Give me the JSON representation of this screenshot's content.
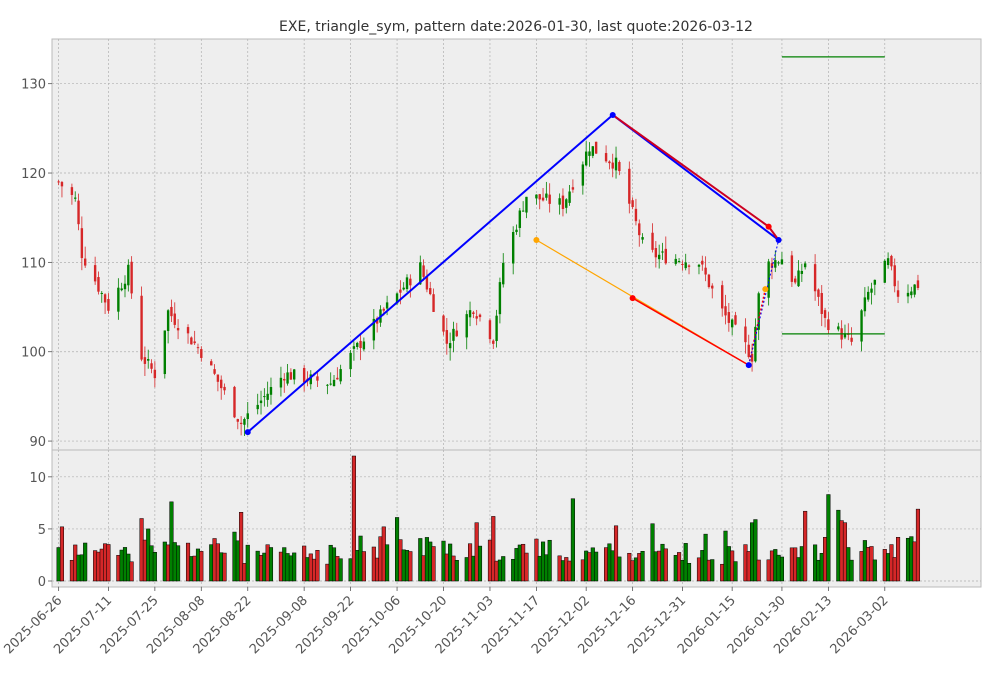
{
  "title": "EXE, triangle_sym, pattern date:2026-01-30, last quote:2026-03-12",
  "colors": {
    "panel_bg": "#eeeeee",
    "grid": "#b0b0b0",
    "axis": "#bbbbbb",
    "up": "#008000",
    "down": "#d62728",
    "volume_edge": "#000000",
    "upper_line": "#0000ff",
    "upper_line2": "#cc0022",
    "lower_line": "#ffa500",
    "lower_line2": "#ff0000",
    "marker_blue": "#0000ff",
    "marker_red": "#ff0000",
    "marker_orange": "#ffa500",
    "target_line": "#008000"
  },
  "chart_data": [
    {
      "type": "candlestick",
      "title": "EXE, triangle_sym, pattern date:2026-01-30, last quote:2026-03-12",
      "xlabel": "",
      "ylabel": "",
      "x_range": [
        "2025-06-24",
        "2026-03-31"
      ],
      "ylim": [
        89,
        135
      ],
      "grid": true,
      "y_ticks": [
        90,
        100,
        110,
        120,
        130
      ],
      "x_ticks": [
        "2025-06-26",
        "2025-07-11",
        "2025-07-25",
        "2025-08-08",
        "2025-08-22",
        "2025-09-08",
        "2025-09-22",
        "2025-10-06",
        "2025-10-20",
        "2025-11-03",
        "2025-11-17",
        "2025-12-02",
        "2025-12-16",
        "2025-12-31",
        "2026-01-15",
        "2026-01-30",
        "2026-02-13",
        "2026-03-02"
      ],
      "ohlc_segments": [
        {
          "from": "2025-06-26",
          "to": "2025-07-01",
          "start": 119.0,
          "end": 117.0
        },
        {
          "from": "2025-07-01",
          "to": "2025-07-03",
          "start": 117.0,
          "end": 111.0
        },
        {
          "from": "2025-07-03",
          "to": "2025-07-11",
          "start": 111.0,
          "end": 105.0
        },
        {
          "from": "2025-07-11",
          "to": "2025-07-17",
          "start": 105.0,
          "end": 109.0
        },
        {
          "from": "2025-07-17",
          "to": "2025-07-21",
          "start": 109.0,
          "end": 99.5
        },
        {
          "from": "2025-07-21",
          "to": "2025-07-25",
          "start": 99.5,
          "end": 97.5
        },
        {
          "from": "2025-07-25",
          "to": "2025-07-29",
          "start": 97.5,
          "end": 104.5
        },
        {
          "from": "2025-07-29",
          "to": "2025-08-08",
          "start": 104.5,
          "end": 100.0
        },
        {
          "from": "2025-08-08",
          "to": "2025-08-20",
          "start": 100.0,
          "end": 92.0
        },
        {
          "from": "2025-08-20",
          "to": "2025-09-02",
          "start": 92.0,
          "end": 97.5
        },
        {
          "from": "2025-09-02",
          "to": "2025-09-16",
          "start": 97.5,
          "end": 96.5
        },
        {
          "from": "2025-09-16",
          "to": "2025-10-03",
          "start": 96.5,
          "end": 105.0
        },
        {
          "from": "2025-10-03",
          "to": "2025-10-13",
          "start": 105.0,
          "end": 109.5
        },
        {
          "from": "2025-10-13",
          "to": "2025-10-21",
          "start": 109.5,
          "end": 101.0
        },
        {
          "from": "2025-10-21",
          "to": "2025-10-29",
          "start": 101.0,
          "end": 105.0
        },
        {
          "from": "2025-10-29",
          "to": "2025-11-04",
          "start": 105.0,
          "end": 101.5
        },
        {
          "from": "2025-11-04",
          "to": "2025-11-07",
          "start": 101.5,
          "end": 110.0
        },
        {
          "from": "2025-11-07",
          "to": "2025-11-14",
          "start": 110.0,
          "end": 117.5
        },
        {
          "from": "2025-11-14",
          "to": "2025-11-25",
          "start": 117.5,
          "end": 116.5
        },
        {
          "from": "2025-11-25",
          "to": "2025-12-03",
          "start": 116.5,
          "end": 123.0
        },
        {
          "from": "2025-12-03",
          "to": "2025-12-11",
          "start": 123.0,
          "end": 121.0
        },
        {
          "from": "2025-12-11",
          "to": "2025-12-20",
          "start": 121.0,
          "end": 111.0
        },
        {
          "from": "2025-12-20",
          "to": "2026-01-05",
          "start": 111.0,
          "end": 110.0
        },
        {
          "from": "2026-01-05",
          "to": "2026-01-12",
          "start": 110.0,
          "end": 104.5
        },
        {
          "from": "2026-01-12",
          "to": "2026-01-21",
          "start": 104.5,
          "end": 99.5
        },
        {
          "from": "2026-01-21",
          "to": "2026-01-24",
          "start": 99.5,
          "end": 109.5
        },
        {
          "from": "2026-01-24",
          "to": "2026-01-30",
          "start": 109.5,
          "end": 110.5
        },
        {
          "from": "2026-01-30",
          "to": "2026-02-03",
          "start": 110.5,
          "end": 107.5
        },
        {
          "from": "2026-02-03",
          "to": "2026-02-06",
          "start": 107.5,
          "end": 110.0
        },
        {
          "from": "2026-02-06",
          "to": "2026-02-12",
          "start": 110.0,
          "end": 103.5
        },
        {
          "from": "2026-02-12",
          "to": "2026-02-20",
          "start": 103.5,
          "end": 101.0
        },
        {
          "from": "2026-02-20",
          "to": "2026-02-25",
          "start": 101.0,
          "end": 106.5
        },
        {
          "from": "2026-02-25",
          "to": "2026-03-03",
          "start": 106.5,
          "end": 110.0
        },
        {
          "from": "2026-03-03",
          "to": "2026-03-06",
          "start": 110.0,
          "end": 106.5
        },
        {
          "from": "2026-03-06",
          "to": "2026-03-12",
          "start": 106.5,
          "end": 107.5
        }
      ],
      "overlay_lines": [
        {
          "name": "",
          "color": "#0000ff",
          "width": 2,
          "points": [
            [
              "2025-08-22",
              91.0
            ],
            [
              "2025-12-10",
              126.5
            ]
          ]
        },
        {
          "name": "",
          "color": "#0000ff",
          "width": 2,
          "points": [
            [
              "2025-12-10",
              126.5
            ],
            [
              "2026-01-29",
              112.5
            ]
          ]
        },
        {
          "name": "",
          "color": "#cc0022",
          "width": 2,
          "points": [
            [
              "2025-12-10",
              126.5
            ],
            [
              "2026-01-26",
              114.0
            ],
            [
              "2026-01-29",
              112.5
            ]
          ]
        },
        {
          "name": "",
          "color": "#ffa500",
          "width": 1.2,
          "points": [
            [
              "2025-11-17",
              112.5
            ],
            [
              "2026-01-20",
              98.5
            ]
          ]
        },
        {
          "name": "",
          "color": "#ff0000",
          "width": 1.5,
          "points": [
            [
              "2025-12-16",
              106.0
            ],
            [
              "2026-01-20",
              98.5
            ]
          ]
        },
        {
          "name": "",
          "color": "#ff0000",
          "width": 1.5,
          "dash": true,
          "points": [
            [
              "2026-01-20",
              98.5
            ],
            [
              "2026-01-25",
              107.0
            ]
          ]
        },
        {
          "name": "",
          "color": "#0000ff",
          "width": 1,
          "dash": true,
          "points": [
            [
              "2026-01-20",
              98.5
            ],
            [
              "2026-01-29",
              112.5
            ]
          ]
        },
        {
          "name": "",
          "color": "#008000",
          "width": 1.2,
          "points": [
            [
              "2026-01-30",
              133.0
            ],
            [
              "2026-03-02",
              133.0
            ]
          ]
        },
        {
          "name": "",
          "color": "#008000",
          "width": 1.2,
          "points": [
            [
              "2026-01-30",
              102.0
            ],
            [
              "2026-03-02",
              102.0
            ]
          ]
        }
      ],
      "markers": [
        {
          "x": "2025-08-22",
          "y": 91.0,
          "color": "#0000ff"
        },
        {
          "x": "2025-12-10",
          "y": 126.5,
          "color": "#0000ff"
        },
        {
          "x": "2026-01-20",
          "y": 98.5,
          "color": "#0000ff"
        },
        {
          "x": "2026-01-29",
          "y": 112.5,
          "color": "#0000ff"
        },
        {
          "x": "2026-01-26",
          "y": 114.0,
          "color": "#ff0000"
        },
        {
          "x": "2025-12-16",
          "y": 106.0,
          "color": "#ff0000"
        },
        {
          "x": "2025-11-17",
          "y": 112.5,
          "color": "#ffa500"
        },
        {
          "x": "2026-01-25",
          "y": 107.0,
          "color": "#ffa500"
        }
      ]
    },
    {
      "type": "bar",
      "name": "",
      "ylim": [
        0,
        12
      ],
      "y_ticks": [
        0,
        5,
        10
      ],
      "grid": true,
      "volume_profile": [
        {
          "from": "2025-06-26",
          "to": "2025-07-20",
          "base": 3.2
        },
        {
          "from": "2025-07-21",
          "to": "2025-08-20",
          "base": 3.4
        },
        {
          "from": "2025-08-21",
          "to": "2025-09-20",
          "base": 2.8
        },
        {
          "from": "2025-09-21",
          "to": "2025-10-20",
          "base": 3.6
        },
        {
          "from": "2025-10-21",
          "to": "2025-11-20",
          "base": 3.3
        },
        {
          "from": "2025-11-21",
          "to": "2025-12-20",
          "base": 3.2
        },
        {
          "from": "2025-12-21",
          "to": "2026-01-20",
          "base": 2.9
        },
        {
          "from": "2026-01-21",
          "to": "2026-03-12",
          "base": 3.6
        }
      ],
      "volume_spikes": [
        {
          "x": "2025-06-27",
          "y": 5.2
        },
        {
          "x": "2025-07-21",
          "y": 6.0
        },
        {
          "x": "2025-07-23",
          "y": 5.0
        },
        {
          "x": "2025-07-30",
          "y": 7.6
        },
        {
          "x": "2025-08-18",
          "y": 4.7
        },
        {
          "x": "2025-08-20",
          "y": 6.6
        },
        {
          "x": "2025-09-23",
          "y": 12.0
        },
        {
          "x": "2025-10-02",
          "y": 5.2
        },
        {
          "x": "2025-10-06",
          "y": 6.1
        },
        {
          "x": "2025-10-30",
          "y": 5.6
        },
        {
          "x": "2025-11-04",
          "y": 6.2
        },
        {
          "x": "2025-11-28",
          "y": 7.9
        },
        {
          "x": "2025-12-11",
          "y": 5.3
        },
        {
          "x": "2025-12-22",
          "y": 5.5
        },
        {
          "x": "2026-01-07",
          "y": 4.5
        },
        {
          "x": "2026-01-13",
          "y": 4.8
        },
        {
          "x": "2026-01-21",
          "y": 5.6
        },
        {
          "x": "2026-01-22",
          "y": 5.9
        },
        {
          "x": "2026-02-06",
          "y": 6.7
        },
        {
          "x": "2026-02-13",
          "y": 8.3
        },
        {
          "x": "2026-02-16",
          "y": 6.8
        },
        {
          "x": "2026-02-17",
          "y": 5.8
        },
        {
          "x": "2026-02-18",
          "y": 5.6
        },
        {
          "x": "2026-03-12",
          "y": 6.9
        }
      ]
    }
  ]
}
